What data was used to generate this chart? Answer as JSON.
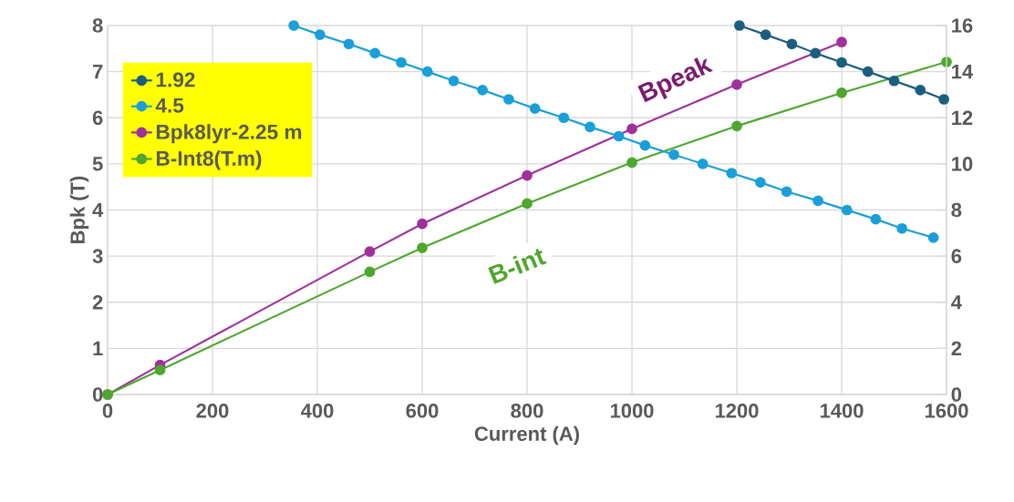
{
  "chart_data": {
    "type": "line",
    "xlabel": "Current (A)",
    "ylabel": "Bpk (T)",
    "xlim": [
      0,
      1600
    ],
    "xticks": [
      0,
      200,
      400,
      600,
      800,
      1000,
      1200,
      1400,
      1600
    ],
    "ylim": [
      0,
      8
    ],
    "yticks": [
      0,
      1,
      2,
      3,
      4,
      5,
      6,
      7,
      8
    ],
    "y2lim": [
      0,
      16
    ],
    "y2ticks": [
      0,
      2,
      4,
      6,
      8,
      10,
      12,
      14,
      16
    ],
    "grid": true,
    "legend": "top left",
    "marker": "circle",
    "line_style": "solid",
    "series": [
      {
        "name": "1.92",
        "color": "#1b5e80",
        "axis": "y2",
        "x": [
          1205,
          1255,
          1305,
          1350,
          1400,
          1450,
          1500,
          1550,
          1595
        ],
        "values": [
          16,
          15.6,
          15.2,
          14.8,
          14.4,
          14.0,
          13.6,
          13.2,
          12.8
        ]
      },
      {
        "name": "4.5",
        "color": "#1a9fd9",
        "axis": "y2",
        "x": [
          355,
          405,
          460,
          510,
          560,
          610,
          660,
          715,
          765,
          815,
          870,
          920,
          975,
          1025,
          1080,
          1135,
          1190,
          1245,
          1295,
          1355,
          1410,
          1465,
          1515,
          1575
        ],
        "values": [
          16,
          15.6,
          15.2,
          14.8,
          14.4,
          14.0,
          13.6,
          13.2,
          12.8,
          12.4,
          12.0,
          11.6,
          11.2,
          10.8,
          10.4,
          10.0,
          9.6,
          9.2,
          8.8,
          8.4,
          8.0,
          7.6,
          7.2,
          6.8
        ]
      },
      {
        "name": "Bpk8lyr-2.25 m",
        "color": "#a0309c",
        "x": [
          0,
          100,
          500,
          600,
          800,
          1000,
          1200,
          1400
        ],
        "values": [
          0,
          0.64,
          3.1,
          3.7,
          4.75,
          5.76,
          6.72,
          7.64
        ]
      },
      {
        "name": "B-Int8(T.m)",
        "color": "#4ea72e",
        "x": [
          0,
          100,
          500,
          600,
          800,
          1000,
          1200,
          1400,
          1600
        ],
        "values": [
          0,
          0.53,
          2.66,
          3.18,
          4.14,
          5.03,
          5.82,
          6.54,
          7.21
        ]
      }
    ],
    "annotations": [
      "Bpeak",
      "B-int"
    ]
  }
}
